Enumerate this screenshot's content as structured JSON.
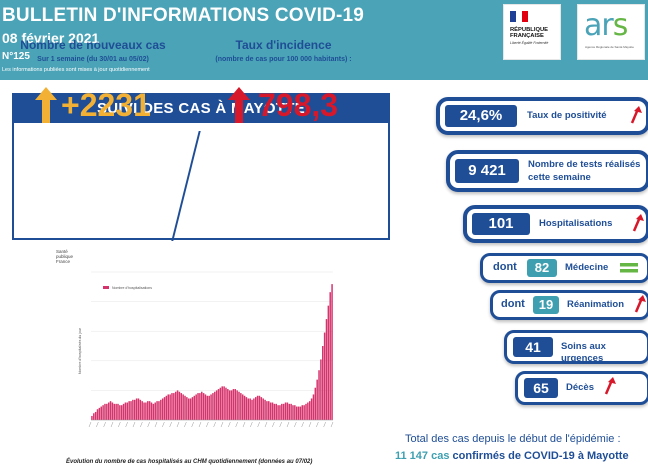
{
  "header": {
    "title": "BULLETIN D'INFORMATIONS COVID-19",
    "date": "08 février 2021",
    "number": "N°125",
    "note": "Les informations publiées sont mises à jour quotidiennement"
  },
  "logos": {
    "rf_line1": "RÉPUBLIQUE",
    "rf_line2": "FRANÇAISE",
    "rf_motto": "Liberté Égalité Fraternité",
    "ars_word_a": "ar",
    "ars_word_s": "s",
    "ars_sub": "Agence Régionale de Santé Mayotte"
  },
  "summary": {
    "title": "SUIVI DES CAS À MAYOTTE",
    "new_cases_label": "Nombre de nouveaux cas",
    "new_cases_period": "Sur 1 semaine (du 30/01 au 05/02)",
    "new_cases_value": "+2231",
    "incidence_label": "Taux d'incidence",
    "incidence_sub": "(nombre de cas pour 100 000 habitants) :",
    "incidence_value": "798,3"
  },
  "indicators": {
    "positivity_value": "24,6%",
    "positivity_label": "Taux de positivité",
    "tests_value": "9 421",
    "tests_label_1": "Nombre de tests réalisés",
    "tests_label_2": "cette semaine",
    "hosp_value": "101",
    "hosp_label": "Hospitalisations",
    "med_prefix": "dont",
    "med_value": "82",
    "med_label": "Médecine",
    "rea_prefix": "dont",
    "rea_value": "19",
    "rea_label": "Réanimation",
    "urg_value": "41",
    "urg_label": "Soins aux urgences",
    "deces_value": "65",
    "deces_label": "Décès"
  },
  "colors": {
    "navy": "#1f4e96",
    "teal": "#3d9fb0",
    "header_bg": "#4aa3b7",
    "arrow_orange": "#f2b134",
    "arrow_red": "#d7182a",
    "equal_green": "#66b646",
    "bar_pink": "#d6336c"
  },
  "icons": {
    "trend_up": "arrow-up-icon",
    "stable": "equal-icon"
  },
  "chart": {
    "logo_l1": "Santé",
    "logo_l2": "publique",
    "logo_l3": "France",
    "caption": "Évolution du nombre de cas hospitalisés au CHM quotidiennement (données au 07/02)"
  },
  "chart_data": {
    "type": "bar",
    "title": "",
    "legend": [
      "Nombre d'hospitalisations"
    ],
    "ylabel": "Nombre d'hospitalisés du jour",
    "ylim": [
      0,
      110
    ],
    "values": [
      3,
      5,
      6,
      8,
      9,
      10,
      11,
      12,
      12,
      13,
      14,
      13,
      12,
      12,
      12,
      11,
      11,
      12,
      13,
      13,
      14,
      14,
      15,
      15,
      16,
      16,
      15,
      14,
      13,
      13,
      14,
      14,
      13,
      12,
      13,
      14,
      14,
      15,
      16,
      17,
      18,
      19,
      19,
      20,
      20,
      21,
      22,
      21,
      20,
      19,
      18,
      17,
      16,
      16,
      17,
      18,
      19,
      20,
      20,
      21,
      20,
      19,
      18,
      18,
      19,
      20,
      21,
      22,
      23,
      24,
      25,
      25,
      24,
      23,
      22,
      22,
      23,
      23,
      22,
      21,
      20,
      19,
      18,
      17,
      16,
      16,
      15,
      16,
      17,
      18,
      18,
      17,
      16,
      15,
      14,
      14,
      13,
      13,
      12,
      12,
      11,
      11,
      12,
      12,
      13,
      13,
      12,
      12,
      11,
      11,
      10,
      10,
      10,
      11,
      11,
      12,
      13,
      14,
      16,
      19,
      24,
      30,
      37,
      45,
      55,
      65,
      75,
      85,
      95,
      101
    ]
  },
  "totals": {
    "line1": "Total des cas depuis le début de l'épidémie :",
    "count": "11 147 cas",
    "rest": "confirmés de COVID-19 à Mayotte"
  }
}
